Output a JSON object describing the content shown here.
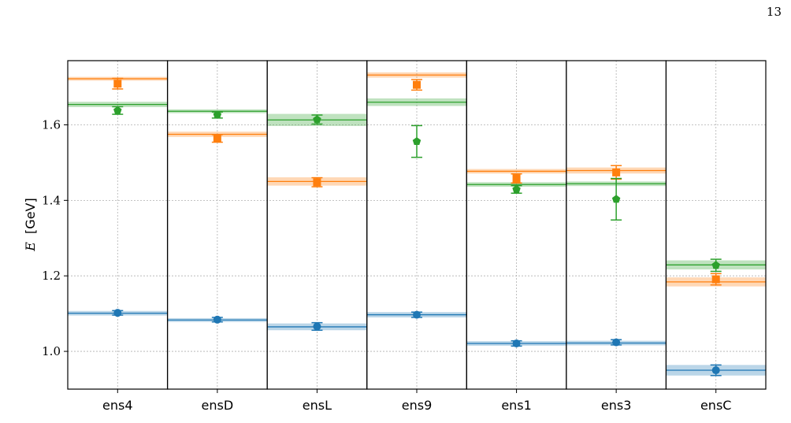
{
  "page": {
    "number": "13"
  },
  "chart_data": {
    "type": "scatter",
    "title": "",
    "xlabel": "",
    "ylabel": "E [GeV]",
    "ylabel_var": "E",
    "ylabel_unit": "[GeV]",
    "ylim": [
      0.9,
      1.77
    ],
    "yticks": [
      {
        "value": 1.0,
        "label": "1.0"
      },
      {
        "value": 1.2,
        "label": "1.2"
      },
      {
        "value": 1.4,
        "label": "1.4"
      },
      {
        "value": 1.6,
        "label": "1.6"
      }
    ],
    "grid": true,
    "legend": "none",
    "categories": [
      "ens4",
      "ensD",
      "ensL",
      "ens9",
      "ens1",
      "ens3",
      "ensC"
    ],
    "series": [
      {
        "color": "#1f77b4",
        "marker": "circle",
        "points": [
          {
            "y": 1.102,
            "err": 0.006,
            "band": 1.101,
            "band_err": 0.006
          },
          {
            "y": 1.084,
            "err": 0.006,
            "band": 1.083,
            "band_err": 0.005
          },
          {
            "y": 1.066,
            "err": 0.01,
            "band": 1.065,
            "band_err": 0.009
          },
          {
            "y": 1.097,
            "err": 0.007,
            "band": 1.097,
            "band_err": 0.007
          },
          {
            "y": 1.021,
            "err": 0.007,
            "band": 1.021,
            "band_err": 0.006
          },
          {
            "y": 1.024,
            "err": 0.007,
            "band": 1.022,
            "band_err": 0.006
          },
          {
            "y": 0.95,
            "err": 0.014,
            "band": 0.95,
            "band_err": 0.014
          }
        ]
      },
      {
        "color": "#ff7f0e",
        "marker": "square",
        "points": [
          {
            "y": 1.709,
            "err": 0.014,
            "band": 1.722,
            "band_err": 0.005
          },
          {
            "y": 1.564,
            "err": 0.01,
            "band": 1.575,
            "band_err": 0.007
          },
          {
            "y": 1.448,
            "err": 0.012,
            "band": 1.45,
            "band_err": 0.011
          },
          {
            "y": 1.706,
            "err": 0.014,
            "band": 1.732,
            "band_err": 0.007
          },
          {
            "y": 1.458,
            "err": 0.012,
            "band": 1.477,
            "band_err": 0.006
          },
          {
            "y": 1.474,
            "err": 0.018,
            "band": 1.479,
            "band_err": 0.008
          },
          {
            "y": 1.191,
            "err": 0.015,
            "band": 1.184,
            "band_err": 0.012
          }
        ]
      },
      {
        "color": "#2ca02c",
        "marker": "pentagon",
        "points": [
          {
            "y": 1.638,
            "err": 0.01,
            "band": 1.654,
            "band_err": 0.007
          },
          {
            "y": 1.626,
            "err": 0.008,
            "band": 1.636,
            "band_err": 0.005
          },
          {
            "y": 1.614,
            "err": 0.012,
            "band": 1.613,
            "band_err": 0.016
          },
          {
            "y": 1.556,
            "err": 0.042,
            "band": 1.66,
            "band_err": 0.01
          },
          {
            "y": 1.429,
            "err": 0.01,
            "band": 1.442,
            "band_err": 0.006
          },
          {
            "y": 1.403,
            "err": 0.055,
            "band": 1.444,
            "band_err": 0.006
          },
          {
            "y": 1.228,
            "err": 0.016,
            "band": 1.229,
            "band_err": 0.012
          }
        ]
      }
    ]
  }
}
